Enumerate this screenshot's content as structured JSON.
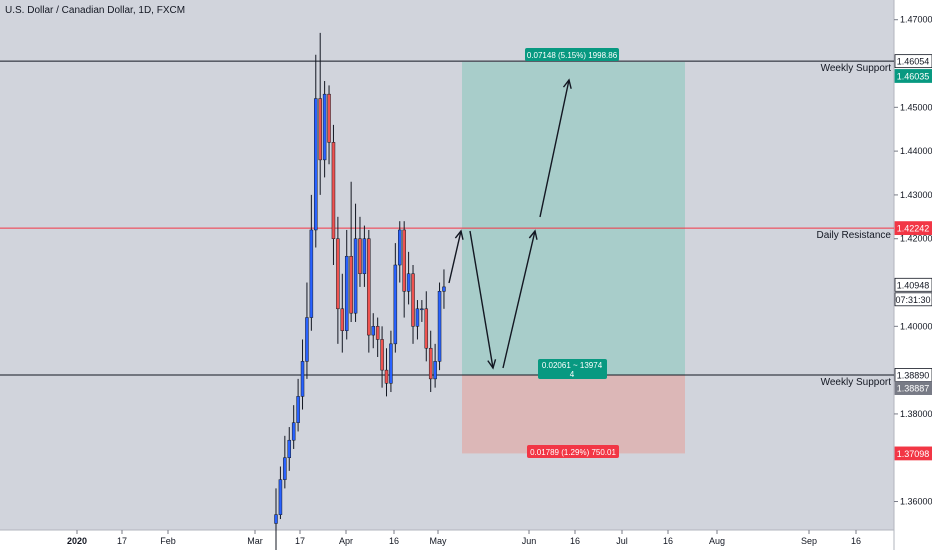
{
  "header": {
    "title": "U.S. Dollar / Canadian Dollar, 1D, FXCM"
  },
  "price_axis": {
    "ticks": [
      "1.47000",
      "1.45000",
      "1.44000",
      "1.43000",
      "1.42000",
      "1.40000",
      "1.38000",
      "1.36000"
    ],
    "tick_values": [
      1.47,
      1.45,
      1.44,
      1.43,
      1.42,
      1.4,
      1.38,
      1.36
    ],
    "last_price": "1.40948",
    "countdown": "07:31:30",
    "badges": [
      {
        "label": "1.46054",
        "price": 1.46054,
        "color": "#ffffff",
        "text_color": "#131722"
      },
      {
        "label": "1.46035",
        "price": 1.46035,
        "color": "#089981",
        "text_color": "#ffffff"
      },
      {
        "label": "1.42242",
        "price": 1.42242,
        "color": "#f23645",
        "text_color": "#ffffff"
      },
      {
        "label": "1.38890",
        "price": 1.3889,
        "color": "#ffffff",
        "text_color": "#131722"
      },
      {
        "label": "1.38887",
        "price": 1.38887,
        "color": "#787b86",
        "text_color": "#ffffff"
      },
      {
        "label": "1.37098",
        "price": 1.37098,
        "color": "#f23645",
        "text_color": "#ffffff"
      }
    ]
  },
  "time_axis": {
    "labels": [
      "2020",
      "17",
      "Feb",
      "Mar",
      "17",
      "Apr",
      "16",
      "May",
      "Jun",
      "16",
      "Jul",
      "16",
      "Aug",
      "Sep",
      "16"
    ]
  },
  "levels": [
    {
      "label": "Weekly Support",
      "price": 1.46054,
      "color": "#131722"
    },
    {
      "label": "Daily Resistance",
      "price": 1.42242,
      "color": "#f23645"
    },
    {
      "label": "Weekly Support",
      "price": 1.3889,
      "color": "#131722"
    }
  ],
  "position": {
    "target_label": "0.07148 (5.15%) 1998.86",
    "entry_label_line1": "0.02061 ~ 13974",
    "entry_label_line2": "4",
    "stop_label": "0.01789 (1.29%) 750.01",
    "target_price": 1.46035,
    "entry_price": 1.38887,
    "stop_price": 1.37098
  },
  "colors": {
    "up": "#2962ff",
    "down": "#ef5350",
    "profit_zone": "#a8cdca",
    "loss_zone": "#dcb7b7",
    "background": "#d1d4dc"
  },
  "chart_data": {
    "type": "candlestick",
    "title": "U.S. Dollar / Canadian Dollar, 1D, FXCM",
    "ylim": [
      1.3535,
      1.4745
    ],
    "candles": [
      [
        1.355,
        1.357,
        1.346,
        1.363
      ],
      [
        1.357,
        1.365,
        1.356,
        1.368
      ],
      [
        1.365,
        1.37,
        1.363,
        1.375
      ],
      [
        1.37,
        1.374,
        1.367,
        1.377
      ],
      [
        1.374,
        1.378,
        1.372,
        1.382
      ],
      [
        1.378,
        1.384,
        1.376,
        1.388
      ],
      [
        1.384,
        1.392,
        1.381,
        1.397
      ],
      [
        1.392,
        1.402,
        1.388,
        1.41
      ],
      [
        1.402,
        1.422,
        1.399,
        1.43
      ],
      [
        1.422,
        1.452,
        1.418,
        1.462
      ],
      [
        1.452,
        1.438,
        1.43,
        1.467
      ],
      [
        1.438,
        1.453,
        1.434,
        1.456
      ],
      [
        1.453,
        1.442,
        1.437,
        1.455
      ],
      [
        1.442,
        1.42,
        1.414,
        1.446
      ],
      [
        1.42,
        1.404,
        1.396,
        1.425
      ],
      [
        1.404,
        1.399,
        1.394,
        1.412
      ],
      [
        1.399,
        1.416,
        1.397,
        1.422
      ],
      [
        1.416,
        1.403,
        1.401,
        1.433
      ],
      [
        1.403,
        1.42,
        1.401,
        1.428
      ],
      [
        1.42,
        1.412,
        1.409,
        1.425
      ],
      [
        1.412,
        1.42,
        1.409,
        1.423
      ],
      [
        1.42,
        1.398,
        1.394,
        1.422
      ],
      [
        1.398,
        1.4,
        1.395,
        1.403
      ],
      [
        1.4,
        1.397,
        1.393,
        1.402
      ],
      [
        1.397,
        1.39,
        1.386,
        1.4
      ],
      [
        1.39,
        1.387,
        1.384,
        1.395
      ],
      [
        1.387,
        1.396,
        1.385,
        1.399
      ],
      [
        1.396,
        1.414,
        1.394,
        1.419
      ],
      [
        1.414,
        1.422,
        1.41,
        1.424
      ],
      [
        1.422,
        1.408,
        1.402,
        1.424
      ],
      [
        1.408,
        1.412,
        1.405,
        1.417
      ],
      [
        1.412,
        1.4,
        1.396,
        1.414
      ],
      [
        1.4,
        1.404,
        1.397,
        1.406
      ],
      [
        1.404,
        1.404,
        1.401,
        1.406
      ],
      [
        1.404,
        1.395,
        1.392,
        1.408
      ],
      [
        1.395,
        1.388,
        1.385,
        1.399
      ],
      [
        1.388,
        1.392,
        1.386,
        1.396
      ],
      [
        1.392,
        1.408,
        1.39,
        1.41
      ],
      [
        1.408,
        1.409,
        1.404,
        1.413
      ]
    ]
  }
}
